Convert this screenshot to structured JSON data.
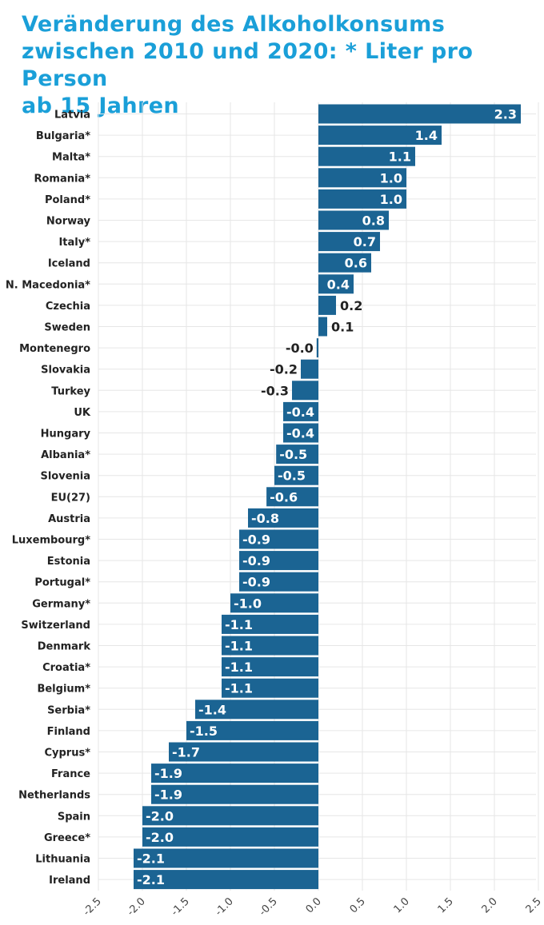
{
  "title_lines": [
    "Veränderung des Alkoholkonsums",
    "zwischen 2010 und 2020: * Liter pro Person",
    "ab 15 Jahren"
  ],
  "colors": {
    "bar": "#1b6493",
    "title": "#1a9fd8",
    "grid": "#e6e6e6",
    "label_inside": "#ffffff",
    "label_outside": "#222222"
  },
  "chart_data": {
    "type": "bar",
    "orientation": "horizontal",
    "title": "Veränderung des Alkoholkonsums zwischen 2010 und 2020: * Liter pro Person ab 15 Jahren",
    "categories": [
      "Latvia",
      "Bulgaria*",
      "Malta*",
      "Romania*",
      "Poland*",
      "Norway",
      "Italy*",
      "Iceland",
      "N. Macedonia*",
      "Czechia",
      "Sweden",
      "Montenegro",
      "Slovakia",
      "Turkey",
      "UK",
      "Hungary",
      "Albania*",
      "Slovenia",
      "EU(27)",
      "Austria",
      "Luxembourg*",
      "Estonia",
      "Portugal*",
      "Germany*",
      "Switzerland",
      "Denmark",
      "Croatia*",
      "Belgium*",
      "Serbia*",
      "Finland",
      "Cyprus*",
      "France",
      "Netherlands",
      "Spain",
      "Greece*",
      "Lithuania",
      "Ireland"
    ],
    "values": [
      2.3,
      1.4,
      1.1,
      1.0,
      1.0,
      0.8,
      0.7,
      0.6,
      0.4,
      0.2,
      0.1,
      -0.02,
      -0.2,
      -0.3,
      -0.4,
      -0.4,
      -0.48,
      -0.5,
      -0.59,
      -0.8,
      -0.9,
      -0.9,
      -0.9,
      -1.0,
      -1.1,
      -1.1,
      -1.1,
      -1.1,
      -1.4,
      -1.5,
      -1.7,
      -1.9,
      -1.9,
      -2.0,
      -2.0,
      -2.1,
      -2.1
    ],
    "value_labels": [
      "2.3",
      "1.4",
      "1.1",
      "1.0",
      "1.0",
      "0.8",
      "0.7",
      "0.6",
      "0.4",
      "0.2",
      "0.1",
      "-0.0",
      "-0.2",
      "-0.3",
      "-0.4",
      "-0.4",
      "-0.5",
      "-0.5",
      "-0.6",
      "-0.8",
      "-0.9",
      "-0.9",
      "-0.9",
      "-1.0",
      "-1.1",
      "-1.1",
      "-1.1",
      "-1.1",
      "-1.4",
      "-1.5",
      "-1.7",
      "-1.9",
      "-1.9",
      "-2.0",
      "-2.0",
      "-2.1",
      "-2.1"
    ],
    "x_ticks": [
      -2.5,
      -2.0,
      -1.5,
      -1.0,
      -0.5,
      0.0,
      0.5,
      1.0,
      1.5,
      2.0,
      2.5
    ],
    "x_tick_labels": [
      "-2.5",
      "-2.0",
      "-1.5",
      "-1.0",
      "-0.5",
      "0.0",
      "0.5",
      "1.0",
      "1.5",
      "2.0",
      "2.5"
    ],
    "xlim": [
      -2.5,
      2.5
    ],
    "xlabel": "",
    "ylabel": "",
    "grid": true,
    "legend": false
  }
}
